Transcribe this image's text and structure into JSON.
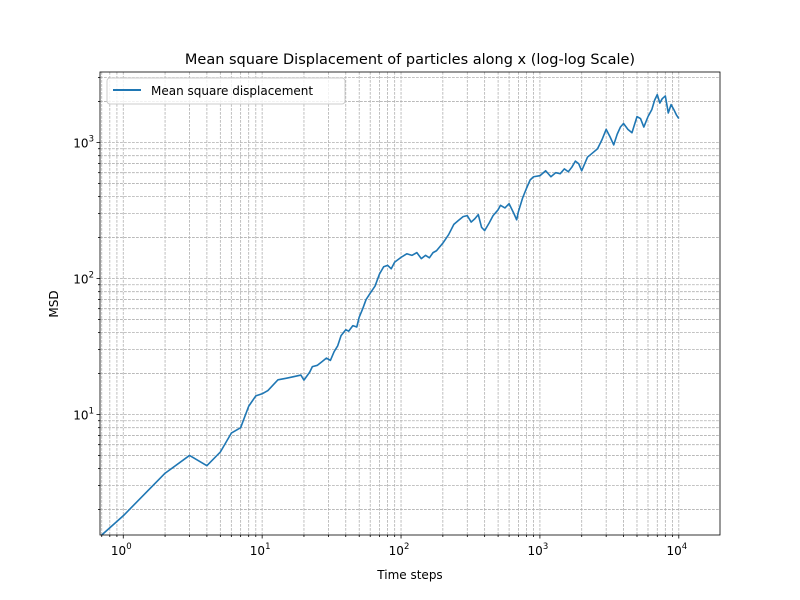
{
  "chart_data": {
    "type": "line",
    "title": "Mean square Displacement of particles along x (log-log Scale)",
    "xlabel": "Time steps",
    "ylabel": "MSD",
    "xscale": "log",
    "yscale": "log",
    "xlim": [
      0.68,
      19800
    ],
    "ylim": [
      1.3,
      3300
    ],
    "grid": true,
    "grid_which": "both",
    "legend_placement": "top-left",
    "x_ticks": [
      {
        "value": 1,
        "base": "10",
        "exp": "0"
      },
      {
        "value": 10,
        "base": "10",
        "exp": "1"
      },
      {
        "value": 100,
        "base": "10",
        "exp": "2"
      },
      {
        "value": 1000,
        "base": "10",
        "exp": "3"
      },
      {
        "value": 10000,
        "base": "10",
        "exp": "4"
      }
    ],
    "y_ticks": [
      {
        "value": 10,
        "base": "10",
        "exp": "1"
      },
      {
        "value": 100,
        "base": "10",
        "exp": "2"
      },
      {
        "value": 1000,
        "base": "10",
        "exp": "3"
      }
    ],
    "series": [
      {
        "name": "Mean square displacement",
        "color": "#1f77b4",
        "points": [
          [
            0.7,
            1.3
          ],
          [
            1,
            1.8
          ],
          [
            2,
            3.7
          ],
          [
            3,
            5.0
          ],
          [
            4,
            4.2
          ],
          [
            5,
            5.3
          ],
          [
            6,
            7.3
          ],
          [
            7,
            8.0
          ],
          [
            8,
            11.5
          ],
          [
            9,
            13.7
          ],
          [
            10,
            14.2
          ],
          [
            11,
            15.0
          ],
          [
            12,
            16.5
          ],
          [
            13,
            18.0
          ],
          [
            15,
            18.5
          ],
          [
            17,
            19.0
          ],
          [
            19,
            19.5
          ],
          [
            20,
            17.9
          ],
          [
            22,
            20.5
          ],
          [
            23,
            22.5
          ],
          [
            25,
            23.0
          ],
          [
            27,
            24.5
          ],
          [
            29,
            26.0
          ],
          [
            31,
            25.0
          ],
          [
            33,
            29.0
          ],
          [
            35,
            32.0
          ],
          [
            37,
            38.0
          ],
          [
            40,
            42.0
          ],
          [
            42,
            41.0
          ],
          [
            45,
            45.0
          ],
          [
            48,
            44.0
          ],
          [
            50,
            52.0
          ],
          [
            53,
            60.0
          ],
          [
            56,
            70.0
          ],
          [
            60,
            78.0
          ],
          [
            65,
            88.0
          ],
          [
            70,
            108.0
          ],
          [
            75,
            122.0
          ],
          [
            80,
            125.0
          ],
          [
            85,
            118.0
          ],
          [
            90,
            132.0
          ],
          [
            100,
            143.0
          ],
          [
            110,
            152.0
          ],
          [
            120,
            148.0
          ],
          [
            130,
            155.0
          ],
          [
            140,
            140.0
          ],
          [
            150,
            148.0
          ],
          [
            160,
            142.0
          ],
          [
            170,
            155.0
          ],
          [
            180,
            160.0
          ],
          [
            200,
            182.0
          ],
          [
            220,
            210.0
          ],
          [
            240,
            250.0
          ],
          [
            260,
            268.0
          ],
          [
            280,
            285.0
          ],
          [
            300,
            290.0
          ],
          [
            320,
            260.0
          ],
          [
            340,
            275.0
          ],
          [
            360,
            295.0
          ],
          [
            380,
            238.0
          ],
          [
            400,
            225.0
          ],
          [
            430,
            255.0
          ],
          [
            460,
            290.0
          ],
          [
            500,
            320.0
          ],
          [
            520,
            345.0
          ],
          [
            560,
            330.0
          ],
          [
            600,
            355.0
          ],
          [
            650,
            300.0
          ],
          [
            680,
            270.0
          ],
          [
            700,
            310.0
          ],
          [
            750,
            390.0
          ],
          [
            800,
            460.0
          ],
          [
            850,
            530.0
          ],
          [
            900,
            560.0
          ],
          [
            1000,
            570.0
          ],
          [
            1100,
            620.0
          ],
          [
            1200,
            560.0
          ],
          [
            1300,
            600.0
          ],
          [
            1400,
            590.0
          ],
          [
            1500,
            640.0
          ],
          [
            1600,
            610.0
          ],
          [
            1700,
            660.0
          ],
          [
            1800,
            730.0
          ],
          [
            1900,
            700.0
          ],
          [
            2000,
            620.0
          ],
          [
            2200,
            780.0
          ],
          [
            2400,
            840.0
          ],
          [
            2600,
            900.0
          ],
          [
            2800,
            1050.0
          ],
          [
            3000,
            1250.0
          ],
          [
            3200,
            1100.0
          ],
          [
            3400,
            960.0
          ],
          [
            3600,
            1150.0
          ],
          [
            3800,
            1300.0
          ],
          [
            4000,
            1380.0
          ],
          [
            4300,
            1250.0
          ],
          [
            4600,
            1180.0
          ],
          [
            5000,
            1550.0
          ],
          [
            5300,
            1500.0
          ],
          [
            5600,
            1300.0
          ],
          [
            6000,
            1550.0
          ],
          [
            6400,
            1750.0
          ],
          [
            6700,
            2050.0
          ],
          [
            7000,
            2250.0
          ],
          [
            7300,
            1950.0
          ],
          [
            7600,
            2100.0
          ],
          [
            8000,
            2200.0
          ],
          [
            8400,
            1650.0
          ],
          [
            8800,
            1900.0
          ],
          [
            9200,
            1750.0
          ],
          [
            9600,
            1600.0
          ],
          [
            10000,
            1500.0
          ]
        ]
      }
    ]
  }
}
